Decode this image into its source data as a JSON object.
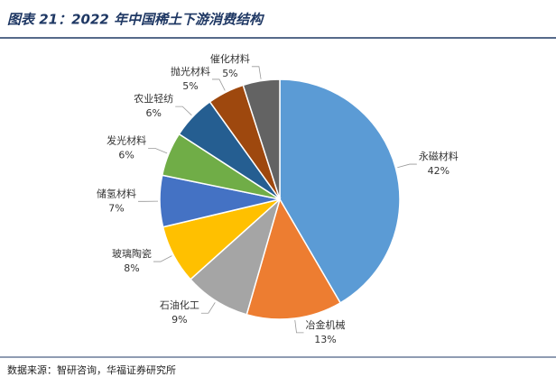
{
  "chart_data": {
    "type": "pie",
    "title": "图表 21：2022 年中国稀土下游消费结构",
    "categories": [
      "永磁材料",
      "冶金机械",
      "石油化工",
      "玻璃陶瓷",
      "储氢材料",
      "发光材料",
      "农业轻纺",
      "抛光材料",
      "催化材料"
    ],
    "values": [
      42,
      13,
      9,
      8,
      7,
      6,
      6,
      5,
      5
    ],
    "value_labels": [
      "42%",
      "13%",
      "9%",
      "8%",
      "7%",
      "6%",
      "6%",
      "5%",
      "5%"
    ],
    "colors": [
      "#5b9bd5",
      "#ed7d31",
      "#a5a5a5",
      "#ffc000",
      "#4472c4",
      "#70ad47",
      "#255e91",
      "#9e480e",
      "#636363"
    ],
    "source": "数据来源：智研咨询，华福证券研究所"
  }
}
